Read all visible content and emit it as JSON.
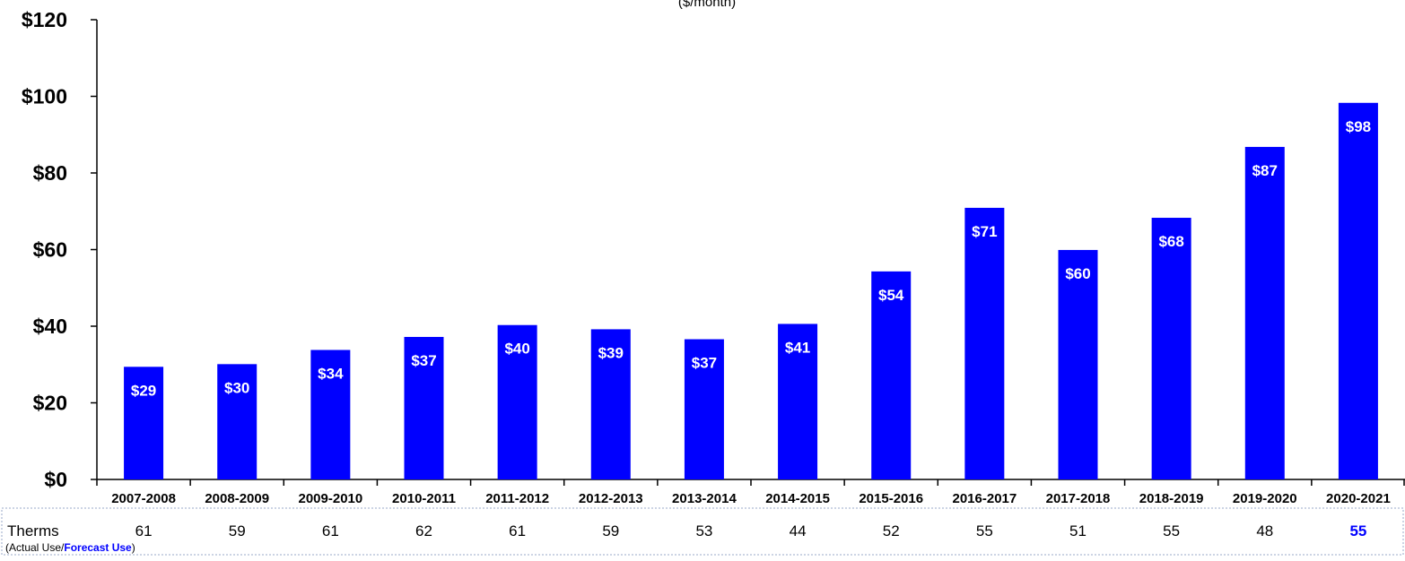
{
  "chart_data": {
    "type": "bar",
    "subtitle": "($/month)",
    "categories": [
      "2007-2008",
      "2008-2009",
      "2009-2010",
      "2010-2011",
      "2011-2012",
      "2012-2013",
      "2013-2014",
      "2014-2015",
      "2015-2016",
      "2016-2017",
      "2017-2018",
      "2018-2019",
      "2019-2020",
      "2020-2021"
    ],
    "values": [
      29.4,
      30.1,
      33.8,
      37.2,
      40.3,
      39.2,
      36.6,
      40.6,
      54.3,
      70.9,
      59.9,
      68.3,
      86.8,
      98.3
    ],
    "data_labels": [
      "$29",
      "$30",
      "$34",
      "$37",
      "$40",
      "$39",
      "$37",
      "$41",
      "$54",
      "$71",
      "$60",
      "$68",
      "$87",
      "$98"
    ],
    "ylim": [
      0,
      120
    ],
    "y_ticks": [
      0,
      20,
      40,
      60,
      80,
      100,
      120
    ],
    "y_tick_labels": [
      "$0",
      "$20",
      "$40",
      "$60",
      "$80",
      "$100",
      "$120"
    ],
    "bar_color": "#0000ff",
    "grid": false,
    "xlabel": "",
    "ylabel": ""
  },
  "therms_table": {
    "label": "Therms",
    "note_prefix": "(Actual Use/",
    "note_forecast": "Forecast Use",
    "note_suffix": ")",
    "values": [
      "61",
      "59",
      "61",
      "62",
      "61",
      "59",
      "53",
      "44",
      "52",
      "55",
      "51",
      "55",
      "48",
      "55"
    ],
    "forecast_index": 13,
    "forecast_color": "#0000ff",
    "border_color": "#9aaac8"
  }
}
